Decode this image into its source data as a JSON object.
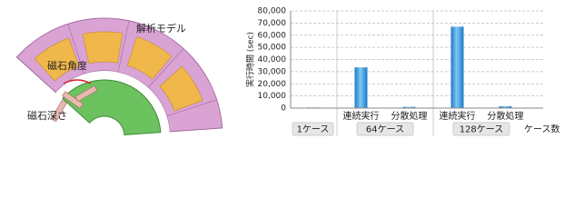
{
  "diagram": {
    "title": "解析モデル",
    "angle_label": "磁石角度",
    "depth_label": "磁石深さ"
  },
  "chart_data": {
    "type": "bar",
    "y_label": "実行時間 (sec)",
    "x_label": "ケース数",
    "groups": [
      {
        "name": "1ケース",
        "categories": [
          null
        ],
        "values": [
          500
        ]
      },
      {
        "name": "64ケース",
        "categories": [
          "連続実行",
          "分散処理"
        ],
        "values": [
          33500,
          1000
        ]
      },
      {
        "name": "128ケース",
        "categories": [
          "連続実行",
          "分散処理"
        ],
        "values": [
          67000,
          1500
        ]
      }
    ],
    "color": "#3a9be0",
    "ylim": [
      0,
      80000
    ],
    "yticks": [
      0,
      {
        "value": 10000,
        "label": "10,000"
      },
      {
        "value": 20000,
        "label": "20,000"
      },
      {
        "value": 30000,
        "label": "30,000"
      },
      {
        "value": 40000,
        "label": "40,000"
      },
      {
        "value": 50000,
        "label": "50,000"
      },
      {
        "value": 60000,
        "label": "60,000"
      },
      {
        "value": 70000,
        "label": "70,000"
      },
      {
        "value": 80000,
        "label": "80,000"
      }
    ],
    "grid": true
  }
}
